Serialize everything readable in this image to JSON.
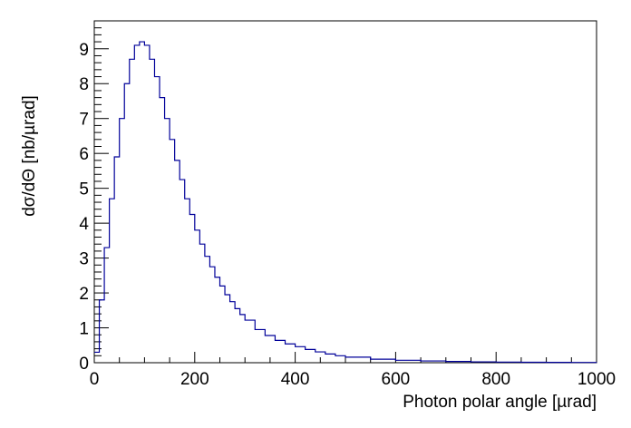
{
  "chart_data": {
    "type": "line",
    "title": "",
    "xlabel": "Photon polar angle [µrad]",
    "ylabel": "dσ/dΘ [nb/µrad]",
    "xlim": [
      0,
      1000
    ],
    "ylim": [
      0,
      9.8
    ],
    "x_ticks": [
      0,
      200,
      400,
      600,
      800,
      1000
    ],
    "y_ticks": [
      0,
      1,
      2,
      3,
      4,
      5,
      6,
      7,
      8,
      9
    ],
    "grid": false,
    "legend": "none",
    "line_color": "#000099",
    "series": [
      {
        "x": [
          0,
          10,
          20,
          30,
          40,
          50,
          60,
          70,
          80,
          90,
          100,
          110,
          120,
          130,
          140,
          150,
          160,
          170,
          180,
          190,
          200,
          210,
          220,
          230,
          240,
          250,
          260,
          270,
          280,
          290,
          300,
          320,
          340,
          360,
          380,
          400,
          420,
          440,
          460,
          480,
          500,
          550,
          600,
          650,
          700,
          750,
          800,
          850,
          900,
          950,
          1000
        ],
        "values": [
          0.3,
          1.8,
          3.3,
          4.7,
          5.9,
          7.0,
          8.0,
          8.7,
          9.1,
          9.2,
          9.1,
          8.7,
          8.2,
          7.6,
          7.0,
          6.4,
          5.8,
          5.25,
          4.7,
          4.25,
          3.8,
          3.4,
          3.05,
          2.75,
          2.45,
          2.2,
          1.95,
          1.75,
          1.55,
          1.38,
          1.22,
          0.95,
          0.78,
          0.64,
          0.54,
          0.46,
          0.38,
          0.31,
          0.25,
          0.2,
          0.16,
          0.1,
          0.07,
          0.05,
          0.035,
          0.025,
          0.018,
          0.013,
          0.01,
          0.008,
          0.006
        ]
      }
    ]
  }
}
